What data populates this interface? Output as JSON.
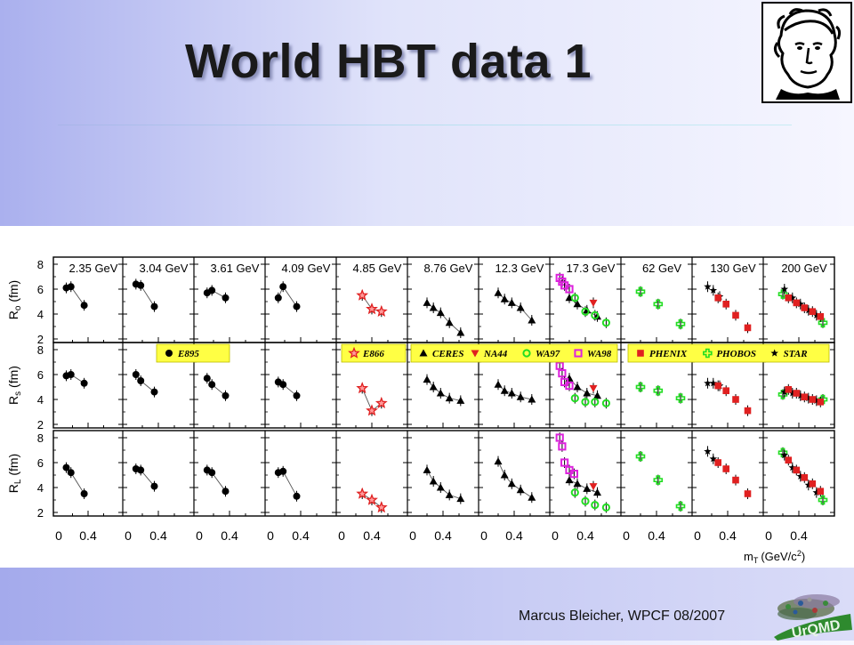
{
  "slide": {
    "title": "World HBT data 1",
    "footer": "Marcus Bleicher, WPCF 08/2007",
    "logo_text": "UrQMD"
  },
  "chart_data": {
    "type": "scatter",
    "panels": [
      "2.35 GeV",
      "3.04 GeV",
      "3.61 GeV",
      "4.09 GeV",
      "4.85 GeV",
      "8.76 GeV",
      "12.3 GeV",
      "17.3 GeV",
      "62 GeV",
      "130 GeV",
      "200 GeV"
    ],
    "xlim": [
      0,
      0.8
    ],
    "ylim": [
      2,
      8
    ],
    "x_ticks": [
      "0.4"
    ],
    "y_ticks": [
      "2",
      "4",
      "6",
      "8"
    ],
    "xlabel_main": "m",
    "xlabel_sub": "T",
    "xlabel_unit": "(GeV/c",
    "xlabel_sup": "2",
    "xlabel_close": ")",
    "rows": [
      {
        "label": "R",
        "sub": "o",
        "unit": "(fm)"
      },
      {
        "label": "R",
        "sub": "s",
        "unit": "(fm)"
      },
      {
        "label": "R",
        "sub": "L",
        "unit": "(fm)"
      }
    ],
    "legend_groups": [
      {
        "entries": [
          {
            "name": "E895",
            "marker": "circle",
            "color": "#000000"
          }
        ]
      },
      {
        "entries": [
          {
            "name": "E866",
            "marker": "star",
            "color": "#e02020"
          }
        ]
      },
      {
        "entries": [
          {
            "name": "CERES",
            "marker": "triangle",
            "color": "#000000"
          },
          {
            "name": "NA44",
            "marker": "tri-down",
            "color": "#e02020"
          },
          {
            "name": "WA97",
            "marker": "open-circle",
            "color": "#22dd22"
          },
          {
            "name": "WA98",
            "marker": "open-square",
            "color": "#dd22dd"
          }
        ]
      },
      {
        "entries": [
          {
            "name": "PHENIX",
            "marker": "square",
            "color": "#e02020"
          },
          {
            "name": "PHOBOS",
            "marker": "open-cross",
            "color": "#22dd22"
          },
          {
            "name": "STAR",
            "marker": "star",
            "color": "#000000"
          }
        ]
      }
    ],
    "series": [
      {
        "panel": 0,
        "name": "E895",
        "marker": "circle",
        "color": "#000000",
        "Ro": [
          [
            0.12,
            6.1
          ],
          [
            0.18,
            6.2
          ],
          [
            0.35,
            4.7
          ]
        ],
        "Rs": [
          [
            0.12,
            5.9
          ],
          [
            0.18,
            6.0
          ],
          [
            0.35,
            5.3
          ]
        ],
        "RL": [
          [
            0.12,
            5.6
          ],
          [
            0.18,
            5.2
          ],
          [
            0.35,
            3.5
          ]
        ]
      },
      {
        "panel": 1,
        "name": "E895",
        "marker": "circle",
        "color": "#000000",
        "Ro": [
          [
            0.12,
            6.4
          ],
          [
            0.18,
            6.3
          ],
          [
            0.35,
            4.6
          ]
        ],
        "Rs": [
          [
            0.12,
            6.0
          ],
          [
            0.18,
            5.5
          ],
          [
            0.35,
            4.6
          ]
        ],
        "RL": [
          [
            0.12,
            5.5
          ],
          [
            0.18,
            5.4
          ],
          [
            0.35,
            4.1
          ]
        ]
      },
      {
        "panel": 2,
        "name": "E895",
        "marker": "circle",
        "color": "#000000",
        "Ro": [
          [
            0.12,
            5.7
          ],
          [
            0.18,
            5.9
          ],
          [
            0.35,
            5.3
          ]
        ],
        "Rs": [
          [
            0.12,
            5.7
          ],
          [
            0.18,
            5.2
          ],
          [
            0.35,
            4.3
          ]
        ],
        "RL": [
          [
            0.12,
            5.4
          ],
          [
            0.18,
            5.2
          ],
          [
            0.35,
            3.7
          ]
        ]
      },
      {
        "panel": 3,
        "name": "E895",
        "marker": "circle",
        "color": "#000000",
        "Ro": [
          [
            0.12,
            5.3
          ],
          [
            0.18,
            6.2
          ],
          [
            0.35,
            4.6
          ]
        ],
        "Rs": [
          [
            0.12,
            5.4
          ],
          [
            0.18,
            5.2
          ],
          [
            0.35,
            4.3
          ]
        ],
        "RL": [
          [
            0.12,
            5.2
          ],
          [
            0.18,
            5.3
          ],
          [
            0.35,
            3.3
          ]
        ]
      },
      {
        "panel": 4,
        "name": "E866",
        "marker": "star",
        "color": "#e02020",
        "Ro": [
          [
            0.28,
            5.5
          ],
          [
            0.4,
            4.4
          ],
          [
            0.52,
            4.2
          ]
        ],
        "Rs": [
          [
            0.28,
            4.9
          ],
          [
            0.4,
            3.1
          ],
          [
            0.52,
            3.7
          ]
        ],
        "RL": [
          [
            0.28,
            3.5
          ],
          [
            0.4,
            3.0
          ],
          [
            0.52,
            2.4
          ]
        ]
      },
      {
        "panel": 5,
        "name": "CERES",
        "marker": "triangle",
        "color": "#000000",
        "Ro": [
          [
            0.2,
            4.9
          ],
          [
            0.28,
            4.5
          ],
          [
            0.37,
            4.1
          ],
          [
            0.48,
            3.3
          ],
          [
            0.62,
            2.5
          ]
        ],
        "Rs": [
          [
            0.2,
            5.6
          ],
          [
            0.28,
            5.0
          ],
          [
            0.37,
            4.5
          ],
          [
            0.48,
            4.1
          ],
          [
            0.62,
            3.9
          ]
        ],
        "RL": [
          [
            0.2,
            5.4
          ],
          [
            0.28,
            4.5
          ],
          [
            0.37,
            4.0
          ],
          [
            0.48,
            3.4
          ],
          [
            0.62,
            3.1
          ]
        ]
      },
      {
        "panel": 6,
        "name": "CERES",
        "marker": "triangle",
        "color": "#000000",
        "Ro": [
          [
            0.2,
            5.7
          ],
          [
            0.28,
            5.2
          ],
          [
            0.37,
            4.9
          ],
          [
            0.48,
            4.5
          ],
          [
            0.62,
            3.5
          ]
        ],
        "Rs": [
          [
            0.2,
            5.2
          ],
          [
            0.28,
            4.7
          ],
          [
            0.37,
            4.5
          ],
          [
            0.48,
            4.2
          ],
          [
            0.62,
            4.0
          ]
        ],
        "RL": [
          [
            0.2,
            6.1
          ],
          [
            0.28,
            5.0
          ],
          [
            0.37,
            4.3
          ],
          [
            0.48,
            3.8
          ],
          [
            0.62,
            3.2
          ]
        ]
      },
      {
        "panel": 7,
        "name": "CERES",
        "marker": "triangle",
        "color": "#000000",
        "Ro": [
          [
            0.2,
            5.3
          ],
          [
            0.3,
            4.8
          ],
          [
            0.42,
            4.3
          ],
          [
            0.55,
            3.8
          ]
        ],
        "Rs": [
          [
            0.2,
            5.7
          ],
          [
            0.3,
            5.0
          ],
          [
            0.42,
            4.5
          ],
          [
            0.55,
            4.3
          ]
        ],
        "RL": [
          [
            0.2,
            4.6
          ],
          [
            0.3,
            4.3
          ],
          [
            0.42,
            3.9
          ],
          [
            0.55,
            3.6
          ]
        ]
      },
      {
        "panel": 7,
        "name": "WA98",
        "marker": "open-square",
        "color": "#dd22dd",
        "Ro": [
          [
            0.08,
            6.9
          ],
          [
            0.11,
            6.6
          ],
          [
            0.14,
            6.3
          ],
          [
            0.2,
            6.0
          ]
        ],
        "Rs": [
          [
            0.08,
            6.7
          ],
          [
            0.11,
            6.1
          ],
          [
            0.14,
            5.4
          ],
          [
            0.2,
            5.1
          ]
        ],
        "RL": [
          [
            0.08,
            8.0
          ],
          [
            0.11,
            7.3
          ],
          [
            0.14,
            6.0
          ],
          [
            0.2,
            5.4
          ],
          [
            0.26,
            5.1
          ]
        ]
      },
      {
        "panel": 7,
        "name": "WA97",
        "marker": "open-circle",
        "color": "#22dd22",
        "Ro": [
          [
            0.27,
            5.3
          ],
          [
            0.4,
            4.2
          ],
          [
            0.52,
            3.9
          ],
          [
            0.66,
            3.3
          ]
        ],
        "Rs": [
          [
            0.27,
            4.1
          ],
          [
            0.4,
            3.8
          ],
          [
            0.52,
            3.8
          ],
          [
            0.66,
            3.7
          ]
        ],
        "RL": [
          [
            0.27,
            3.6
          ],
          [
            0.4,
            2.9
          ],
          [
            0.52,
            2.6
          ],
          [
            0.66,
            2.4
          ]
        ]
      },
      {
        "panel": 7,
        "name": "NA44",
        "marker": "tri-down",
        "color": "#e02020",
        "Ro": [
          [
            0.5,
            4.9
          ]
        ],
        "Rs": [
          [
            0.5,
            4.9
          ]
        ],
        "RL": [
          [
            0.5,
            4.1
          ]
        ]
      },
      {
        "panel": 8,
        "name": "PHOBOS",
        "marker": "open-cross",
        "color": "#22dd22",
        "Ro": [
          [
            0.2,
            5.8
          ],
          [
            0.42,
            4.8
          ],
          [
            0.7,
            3.2
          ]
        ],
        "Rs": [
          [
            0.2,
            5.0
          ],
          [
            0.42,
            4.7
          ],
          [
            0.7,
            4.1
          ]
        ],
        "RL": [
          [
            0.2,
            6.5
          ],
          [
            0.42,
            4.6
          ],
          [
            0.7,
            2.5
          ]
        ]
      },
      {
        "panel": 9,
        "name": "STAR",
        "marker": "star",
        "color": "#000000",
        "Ro": [
          [
            0.15,
            6.2
          ],
          [
            0.22,
            5.9
          ],
          [
            0.3,
            5.4
          ]
        ],
        "Rs": [
          [
            0.15,
            5.3
          ],
          [
            0.22,
            5.3
          ],
          [
            0.3,
            5.1
          ]
        ],
        "RL": [
          [
            0.15,
            6.9
          ],
          [
            0.22,
            6.3
          ]
        ]
      },
      {
        "panel": 9,
        "name": "PHENIX",
        "marker": "square",
        "color": "#e02020",
        "Ro": [
          [
            0.28,
            5.3
          ],
          [
            0.38,
            4.8
          ],
          [
            0.5,
            3.9
          ],
          [
            0.65,
            2.9
          ]
        ],
        "Rs": [
          [
            0.28,
            5.1
          ],
          [
            0.38,
            4.7
          ],
          [
            0.5,
            4.0
          ],
          [
            0.65,
            3.1
          ]
        ],
        "RL": [
          [
            0.28,
            6.0
          ],
          [
            0.38,
            5.5
          ],
          [
            0.5,
            4.6
          ],
          [
            0.65,
            3.5
          ]
        ]
      },
      {
        "panel": 10,
        "name": "PHOBOS",
        "marker": "open-cross",
        "color": "#22dd22",
        "Ro": [
          [
            0.2,
            5.6
          ],
          [
            0.7,
            3.3
          ]
        ],
        "Rs": [
          [
            0.2,
            4.4
          ],
          [
            0.7,
            4.0
          ]
        ],
        "RL": [
          [
            0.2,
            6.8
          ],
          [
            0.7,
            3.0
          ]
        ]
      },
      {
        "panel": 10,
        "name": "STAR",
        "marker": "star",
        "color": "#000000",
        "Ro": [
          [
            0.22,
            6.0
          ],
          [
            0.32,
            5.3
          ],
          [
            0.42,
            4.8
          ],
          [
            0.52,
            4.3
          ],
          [
            0.62,
            3.9
          ]
        ],
        "Rs": [
          [
            0.22,
            4.6
          ],
          [
            0.32,
            4.5
          ],
          [
            0.42,
            4.3
          ],
          [
            0.52,
            4.1
          ],
          [
            0.62,
            3.9
          ]
        ],
        "RL": [
          [
            0.22,
            6.6
          ],
          [
            0.32,
            5.6
          ],
          [
            0.42,
            4.9
          ],
          [
            0.52,
            4.2
          ],
          [
            0.62,
            3.6
          ]
        ]
      },
      {
        "panel": 10,
        "name": "PHENIX",
        "marker": "square",
        "color": "#e02020",
        "Ro": [
          [
            0.27,
            5.3
          ],
          [
            0.37,
            4.9
          ],
          [
            0.47,
            4.5
          ],
          [
            0.57,
            4.2
          ],
          [
            0.67,
            3.8
          ]
        ],
        "Rs": [
          [
            0.27,
            4.8
          ],
          [
            0.37,
            4.5
          ],
          [
            0.47,
            4.2
          ],
          [
            0.57,
            4.0
          ],
          [
            0.67,
            3.8
          ]
        ],
        "RL": [
          [
            0.27,
            6.2
          ],
          [
            0.37,
            5.4
          ],
          [
            0.47,
            4.8
          ],
          [
            0.57,
            4.3
          ],
          [
            0.67,
            3.7
          ]
        ]
      }
    ]
  }
}
